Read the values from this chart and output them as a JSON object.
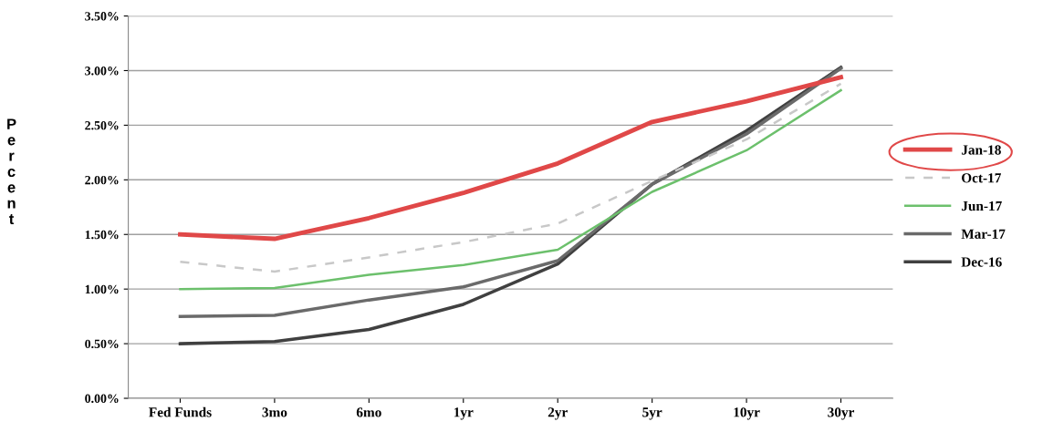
{
  "chart_data": {
    "type": "line",
    "ylabel": "Percent",
    "categories": [
      "Fed Funds",
      "3mo",
      "6mo",
      "1yr",
      "2yr",
      "5yr",
      "10yr",
      "30yr"
    ],
    "series": [
      {
        "name": "Jan-18",
        "color": "#e04848",
        "values": [
          1.5,
          1.46,
          1.65,
          1.88,
          2.15,
          2.53,
          2.72,
          2.94
        ]
      },
      {
        "name": "Oct-17",
        "color": "#c8c8c8",
        "line_style": "dashed",
        "values": [
          1.25,
          1.16,
          1.29,
          1.43,
          1.6,
          1.99,
          2.37,
          2.88
        ]
      },
      {
        "name": "Jun-17",
        "color": "#6cc06c",
        "values": [
          1.0,
          1.01,
          1.13,
          1.22,
          1.36,
          1.89,
          2.27,
          2.82
        ]
      },
      {
        "name": "Mar-17",
        "color": "#6a6a6a",
        "values": [
          0.75,
          0.76,
          0.9,
          1.02,
          1.26,
          1.96,
          2.42,
          3.02
        ]
      },
      {
        "name": "Dec-16",
        "color": "#404040",
        "values": [
          0.5,
          0.52,
          0.63,
          0.86,
          1.23,
          1.96,
          2.45,
          3.03
        ]
      }
    ],
    "ylim": [
      0,
      3.5
    ],
    "yticks": [
      {
        "value": 0,
        "label": "0.00%"
      },
      {
        "value": 0.5,
        "label": "0.50%"
      },
      {
        "value": 1.0,
        "label": "1.00%"
      },
      {
        "value": 1.5,
        "label": "1.50%"
      },
      {
        "value": 2.0,
        "label": "2.00%"
      },
      {
        "value": 2.5,
        "label": "2.50%"
      },
      {
        "value": 3.0,
        "label": "3.00%"
      },
      {
        "value": 3.5,
        "label": "3.50%"
      }
    ],
    "grid": "y",
    "legend": "right",
    "marker": "none"
  }
}
